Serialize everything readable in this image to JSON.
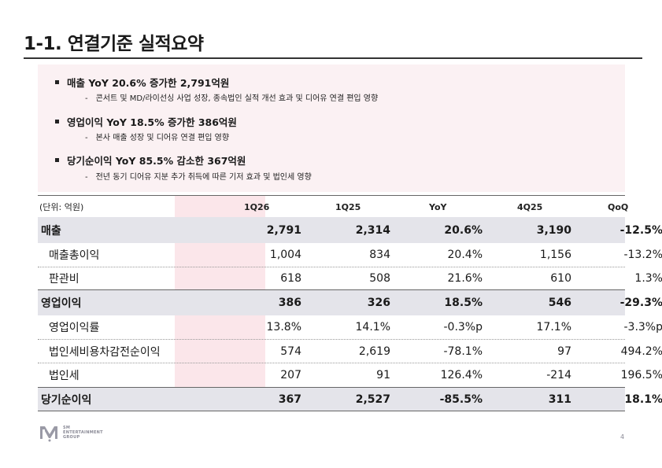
{
  "title": "1-1. 연결기준 실적요약",
  "summary": [
    {
      "headline": "매출 YoY 20.6% 증가한 2,791억원",
      "detail": "콘서트 및 MD/라이선싱 사업 성장, 종속법인 실적 개선 효과 및 디어유 연결 편입 영향"
    },
    {
      "headline": "영업이익 YoY 18.5% 증가한 386억원",
      "detail": "본사 매출 성장 및 디어유 연결 편입 영향"
    },
    {
      "headline": "당기순이익 YoY 85.5% 감소한 367억원",
      "detail": "전년 동기 디어유 지분 추가 취득에 따른 기저 효과 및 법인세 영향"
    }
  ],
  "bullet_dash": "-",
  "table": {
    "unit_label": "(단위: 억원)",
    "columns": [
      "1Q26",
      "1Q25",
      "YoY",
      "4Q25",
      "QoQ"
    ],
    "rows": [
      {
        "label": "매출",
        "type": "major",
        "values": [
          "2,791",
          "2,314",
          "20.6%",
          "3,190",
          "-12.5%"
        ]
      },
      {
        "label": "매출총이익",
        "type": "minor",
        "values": [
          "1,004",
          "834",
          "20.4%",
          "1,156",
          "-13.2%"
        ]
      },
      {
        "label": "판관비",
        "type": "minor",
        "values": [
          "618",
          "508",
          "21.6%",
          "610",
          "1.3%"
        ]
      },
      {
        "label": "영업이익",
        "type": "major",
        "values": [
          "386",
          "326",
          "18.5%",
          "546",
          "-29.3%"
        ]
      },
      {
        "label": "영업이익률",
        "type": "minor",
        "values": [
          "13.8%",
          "14.1%",
          "-0.3%p",
          "17.1%",
          "-3.3%p"
        ]
      },
      {
        "label": "법인세비용차감전순이익",
        "type": "minor",
        "values": [
          "574",
          "2,619",
          "-78.1%",
          "97",
          "494.2%"
        ]
      },
      {
        "label": "법인세",
        "type": "minor",
        "values": [
          "207",
          "91",
          "126.4%",
          "-214",
          "196.5%"
        ]
      },
      {
        "label": "당기순이익",
        "type": "major",
        "values": [
          "367",
          "2,527",
          "-85.5%",
          "311",
          "18.1%"
        ]
      }
    ]
  },
  "logo": {
    "line1": "SM",
    "line2": "ENTERTAINMENT",
    "line3": "GROUP"
  },
  "page_number": "4",
  "colors": {
    "highlight_column": "#fbe6ea",
    "summary_background": "#fbf1f3",
    "major_row": "#e4e4ea"
  }
}
